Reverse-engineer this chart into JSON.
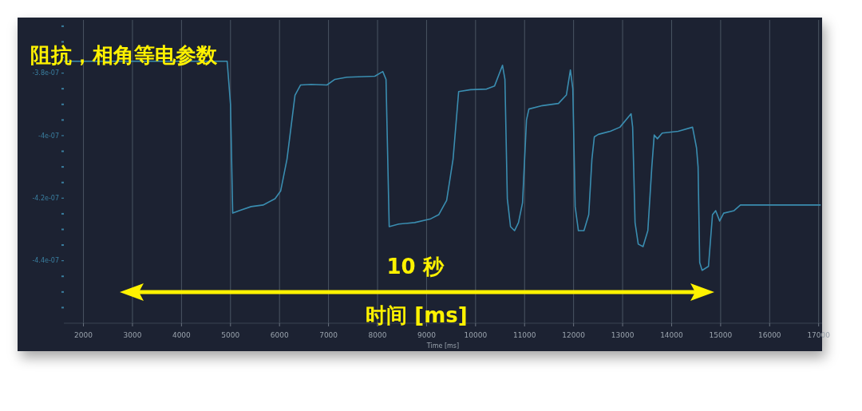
{
  "chart_data": {
    "type": "line",
    "title": "阻抗，相角等电参数",
    "xlabel": "Time [ms]",
    "annotations": [
      "10 秒",
      "时间 [ms]"
    ],
    "xlim": [
      1600,
      17070
    ],
    "xticks": [
      2000,
      3000,
      4000,
      5000,
      6000,
      7000,
      8000,
      9000,
      10000,
      11000,
      12000,
      13000,
      14000,
      15000,
      16000,
      17000
    ],
    "ylim": [
      -4.6e-07,
      -3.63e-07
    ],
    "yticks": [
      {
        "value": -3.65e-07,
        "label": null
      },
      {
        "value": -3.7e-07,
        "label": null
      },
      {
        "value": -3.75e-07,
        "label": null
      },
      {
        "value": -3.8e-07,
        "label": "-3.8e-07"
      },
      {
        "value": -3.85e-07,
        "label": null
      },
      {
        "value": -3.9e-07,
        "label": null
      },
      {
        "value": -3.95e-07,
        "label": null
      },
      {
        "value": -4e-07,
        "label": "-4e-07"
      },
      {
        "value": -4.05e-07,
        "label": null
      },
      {
        "value": -4.1e-07,
        "label": null
      },
      {
        "value": -4.15e-07,
        "label": null
      },
      {
        "value": -4.2e-07,
        "label": "-4.2e-07"
      },
      {
        "value": -4.25e-07,
        "label": null
      },
      {
        "value": -4.3e-07,
        "label": null
      },
      {
        "value": -4.35e-07,
        "label": null
      },
      {
        "value": -4.4e-07,
        "label": "-4.4e-07"
      },
      {
        "value": -4.45e-07,
        "label": null
      },
      {
        "value": -4.5e-07,
        "label": null
      },
      {
        "value": -4.55e-07,
        "label": null
      }
    ],
    "grid": "x",
    "line_style": "solid",
    "series": [
      {
        "color": "#3a8db0",
        "x": [
          1600,
          4932,
          5000,
          5045,
          5176,
          5420,
          5664,
          5909,
          6023,
          6153,
          6316,
          6430,
          6642,
          6967,
          7130,
          7375,
          7945,
          8107,
          8173,
          8238,
          8433,
          8759,
          9085,
          9248,
          9410,
          9541,
          9655,
          9899,
          10225,
          10388,
          10550,
          10599,
          10648,
          10713,
          10795,
          10876,
          10958,
          11039,
          11088,
          11365,
          11691,
          11853,
          11935,
          11984,
          12032,
          12098,
          12212,
          12309,
          12374,
          12423,
          12505,
          12749,
          12945,
          13173,
          13205,
          13254,
          13319,
          13417,
          13515,
          13596,
          13645,
          13710,
          13808,
          14134,
          14427,
          14508,
          14540,
          14573,
          14622,
          14752,
          14834,
          14899,
          14980,
          15062,
          15274,
          15404,
          16000,
          17032
        ],
        "values": [
          -3.762e-07,
          -3.762e-07,
          -3.9e-07,
          -4.248e-07,
          -4.24e-07,
          -4.227e-07,
          -4.222e-07,
          -4.202e-07,
          -4.177e-07,
          -4.075e-07,
          -3.871e-07,
          -3.838e-07,
          -3.836e-07,
          -3.838e-07,
          -3.82e-07,
          -3.813e-07,
          -3.81e-07,
          -3.795e-07,
          -3.82e-07,
          -4.291e-07,
          -4.283e-07,
          -4.278e-07,
          -4.266e-07,
          -4.253e-07,
          -4.207e-07,
          -4.075e-07,
          -3.859e-07,
          -3.853e-07,
          -3.851e-07,
          -3.841e-07,
          -3.775e-07,
          -3.82e-07,
          -4.202e-07,
          -4.291e-07,
          -4.304e-07,
          -4.278e-07,
          -4.215e-07,
          -3.95e-07,
          -3.915e-07,
          -3.904e-07,
          -3.897e-07,
          -3.87e-07,
          -3.79e-07,
          -3.85e-07,
          -4.227e-07,
          -4.304e-07,
          -4.304e-07,
          -4.253e-07,
          -4.075e-07,
          -4.004e-07,
          -3.996e-07,
          -3.986e-07,
          -3.973e-07,
          -3.93e-07,
          -3.973e-07,
          -4.278e-07,
          -4.347e-07,
          -4.355e-07,
          -4.304e-07,
          -4.1e-07,
          -3.998e-07,
          -4.01e-07,
          -3.992e-07,
          -3.986e-07,
          -3.973e-07,
          -4.039e-07,
          -4.1e-07,
          -4.406e-07,
          -4.431e-07,
          -4.418e-07,
          -4.253e-07,
          -4.24e-07,
          -4.273e-07,
          -4.248e-07,
          -4.24e-07,
          -4.222e-07,
          -4.222e-07,
          -4.222e-07
        ]
      }
    ]
  }
}
